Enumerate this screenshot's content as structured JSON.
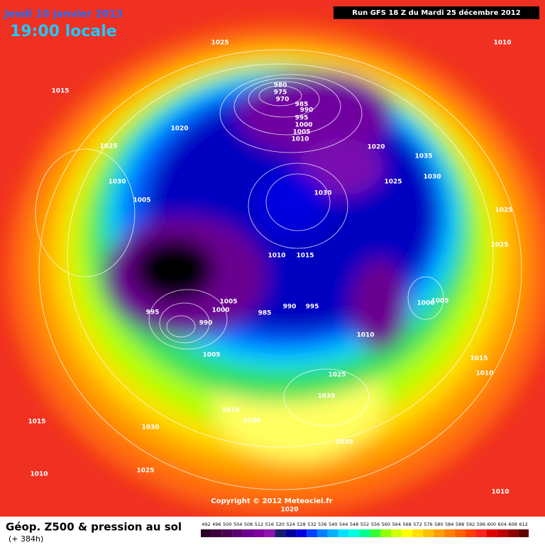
{
  "header": {
    "date": "Jeudi 10 janvier 2013",
    "time": "19:00 locale",
    "run": "Run GFS 18 Z du Mardi 25 décembre 2012"
  },
  "map": {
    "copyright": "Copyright © 2012 Meteociel.fr",
    "isobar_labels": [
      1025,
      1010,
      1015,
      980,
      975,
      970,
      985,
      990,
      995,
      1000,
      1005,
      1010,
      1020,
      1025,
      1020,
      1035,
      1030,
      1030,
      1025,
      1030,
      1005,
      1025,
      1025,
      1010,
      1015,
      1005,
      1000,
      995,
      985,
      990,
      995,
      1005,
      1000,
      1010,
      990,
      1005,
      1025,
      1015,
      1010,
      1035,
      1010,
      1020,
      1015,
      1030,
      1030,
      1010,
      1025,
      1010,
      1020
    ]
  },
  "footer": {
    "title": "Géop. Z500 & pression au sol",
    "lead": "(+ 384h)"
  },
  "colorbar": {
    "ticks": [
      492,
      496,
      500,
      504,
      508,
      512,
      516,
      520,
      524,
      528,
      532,
      536,
      540,
      544,
      548,
      552,
      556,
      560,
      564,
      568,
      572,
      576,
      580,
      584,
      588,
      592,
      596,
      600,
      604,
      608,
      612
    ],
    "colors": [
      "#2a002a",
      "#3c0040",
      "#4b0050",
      "#5a0070",
      "#6e0090",
      "#8000a0",
      "#9010b0",
      "#1a1a70",
      "#0000a0",
      "#0000e0",
      "#0040ff",
      "#0080ff",
      "#00b0ff",
      "#00e0ff",
      "#00ffe0",
      "#00ff90",
      "#30ff30",
      "#90ff00",
      "#d0ff00",
      "#ffff00",
      "#ffe000",
      "#ffc000",
      "#ffa000",
      "#ff8000",
      "#ff6000",
      "#ff4000",
      "#ff2020",
      "#e00000",
      "#c00000",
      "#900000",
      "#600000"
    ]
  }
}
